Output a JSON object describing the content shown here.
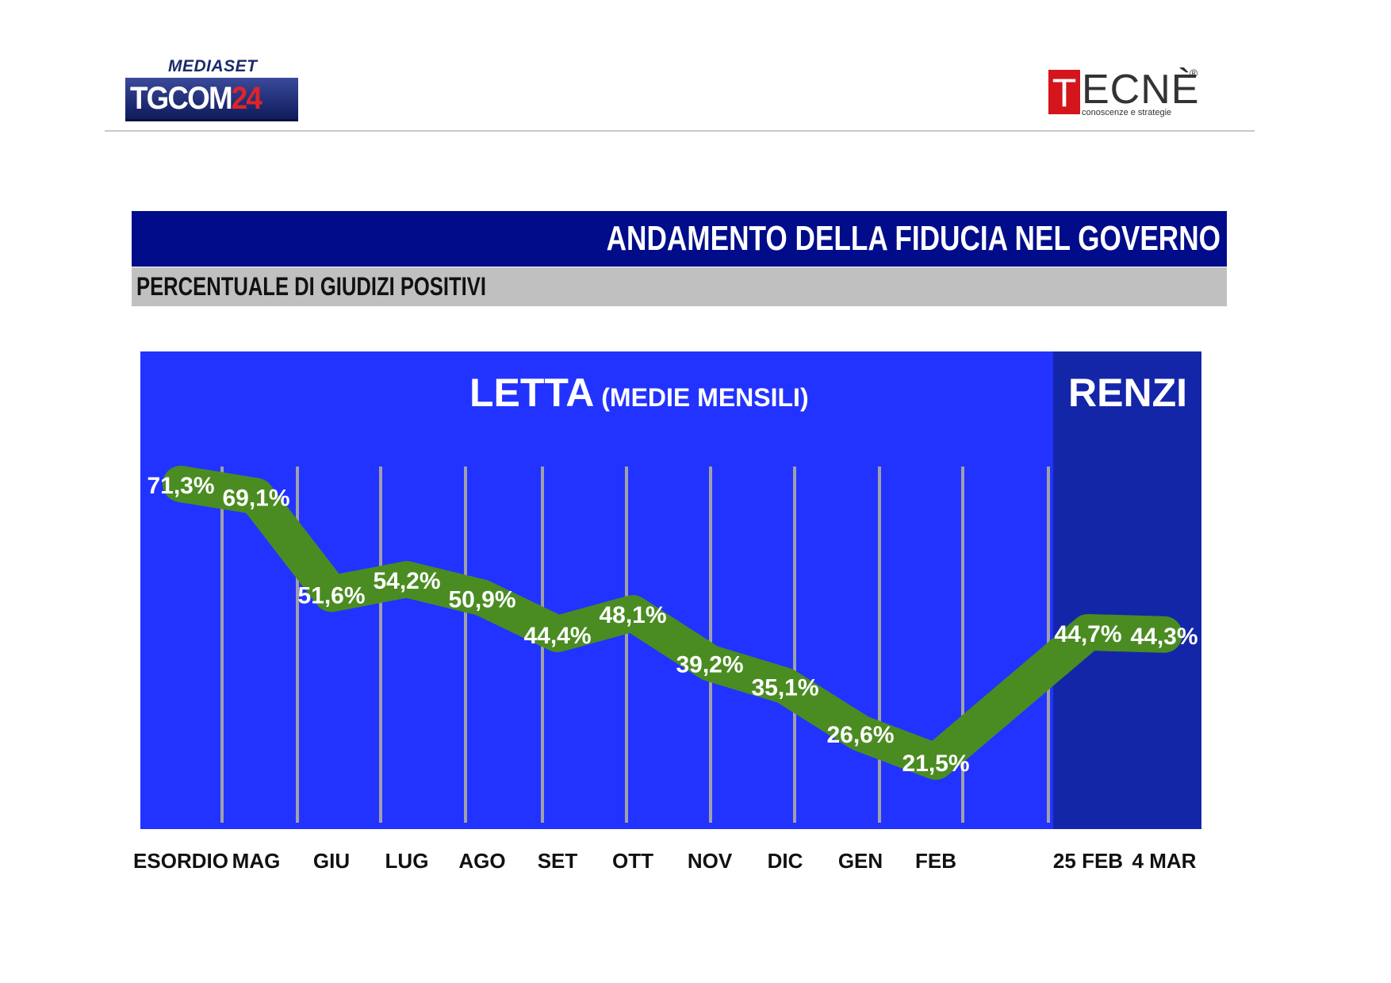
{
  "header": {
    "tgcom_logo": {
      "top": "MEDIASET",
      "main": "TGCOM",
      "number": "24"
    },
    "tecne_logo": {
      "initial": "T",
      "word": "ECNÈ",
      "reg": "®",
      "tagline": "conoscenze e strategie"
    }
  },
  "title": "ANDAMENTO DELLA FIDUCIA NEL GOVERNO",
  "subtitle": "PERCENTUALE DI GIUDIZI POSITIVI",
  "colors": {
    "title_bar": "#000c8a",
    "subtitle_bar": "#c0c0c0",
    "letta_bg": "#2233ff",
    "renzi_bg": "#1426a8",
    "line": "#4a8c22",
    "gridline": "#a0a0a8"
  },
  "chart_data": {
    "type": "line",
    "regions": [
      {
        "label": "LETTA",
        "sublabel": "(MEDIE MENSILI)",
        "from": "ESORDIO",
        "to": "FEB"
      },
      {
        "label": "RENZI",
        "sublabel": "",
        "from": "25 FEB",
        "to": "4 MAR"
      }
    ],
    "categories": [
      "ESORDIO",
      "MAG",
      "GIU",
      "LUG",
      "AGO",
      "SET",
      "OTT",
      "NOV",
      "DIC",
      "GEN",
      "FEB",
      "25 FEB",
      "4 MAR"
    ],
    "values": [
      71.3,
      69.1,
      51.6,
      54.2,
      50.9,
      44.4,
      48.1,
      39.2,
      35.1,
      26.6,
      21.5,
      44.7,
      44.3
    ],
    "value_labels": [
      "71,3%",
      "69,1%",
      "51,6%",
      "54,2%",
      "50,9%",
      "44,4%",
      "48,1%",
      "39,2%",
      "35,1%",
      "26,6%",
      "21,5%",
      "44,7%",
      "44,3%"
    ],
    "ylim": [
      10,
      80
    ],
    "grid": true,
    "legend": "none"
  }
}
